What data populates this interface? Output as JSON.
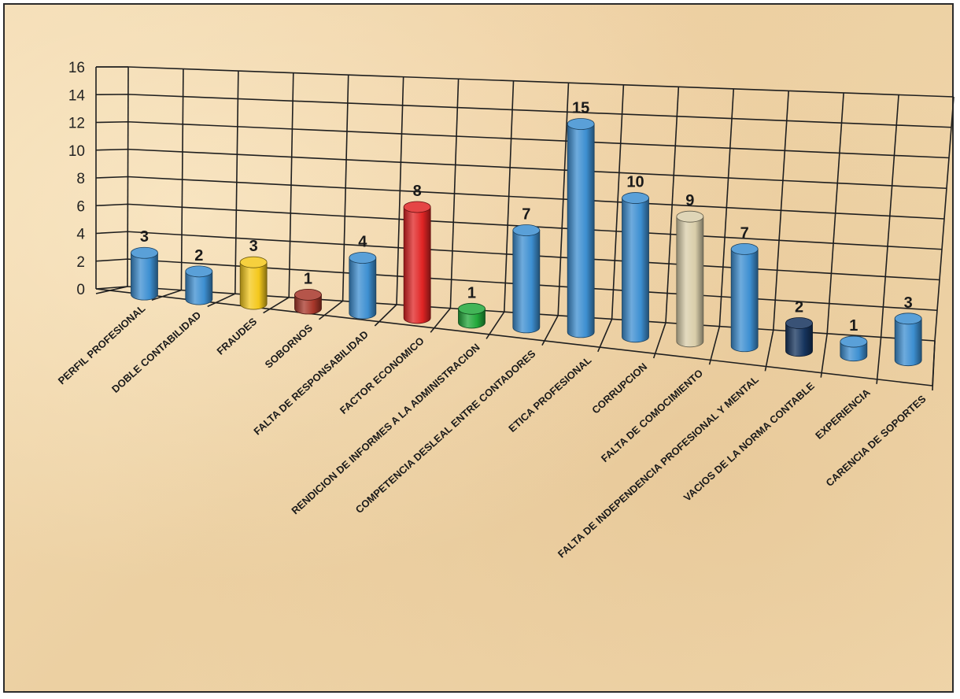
{
  "chart_data": {
    "type": "bar",
    "ylim": [
      0,
      16
    ],
    "yticks": [
      "0",
      "2",
      "4",
      "6",
      "8",
      "10",
      "12",
      "14",
      "16"
    ],
    "grid": true,
    "categories": [
      "PERFIL PROFESIONAL",
      "DOBLE CONTABILIDAD",
      "FRAUDES",
      "SOBORNOS",
      "FALTA DE RESPONSABILIDAD",
      "FACTOR ECONOMICO",
      "RENDICION DE INFORMES A LA ADMINISTRACION",
      "COMPETENCIA DESLEAL ENTRE CONTADORES",
      "ETICA PROFESIONAL",
      "CORRUPCION",
      "FALTA DE COMOCIMIENTO",
      "FALTA DE INDEPENDENCIA PROFESIONAL Y MENTAL",
      "VACIOS DE LA NORMA CONTABLE",
      "EXPERIENCIA",
      "CARENCIA DE SOPORTES"
    ],
    "values": [
      3,
      2,
      3,
      1,
      4,
      8,
      1,
      7,
      15,
      10,
      9,
      7,
      2,
      1,
      3
    ],
    "data_labels": [
      "3",
      "2",
      "3",
      "1",
      "4",
      "8",
      "1",
      "7",
      "15",
      "10",
      "9",
      "7",
      "2",
      "1",
      "3"
    ],
    "colors": [
      "#3d8fd1",
      "#3d8fd1",
      "#f4c81c",
      "#a8372a",
      "#3d8fd1",
      "#e02424",
      "#22a83a",
      "#3d8fd1",
      "#3d8fd1",
      "#3d8fd1",
      "#d9ceaa",
      "#3d8fd1",
      "#16345e",
      "#3d8fd1",
      "#3d8fd1"
    ]
  }
}
